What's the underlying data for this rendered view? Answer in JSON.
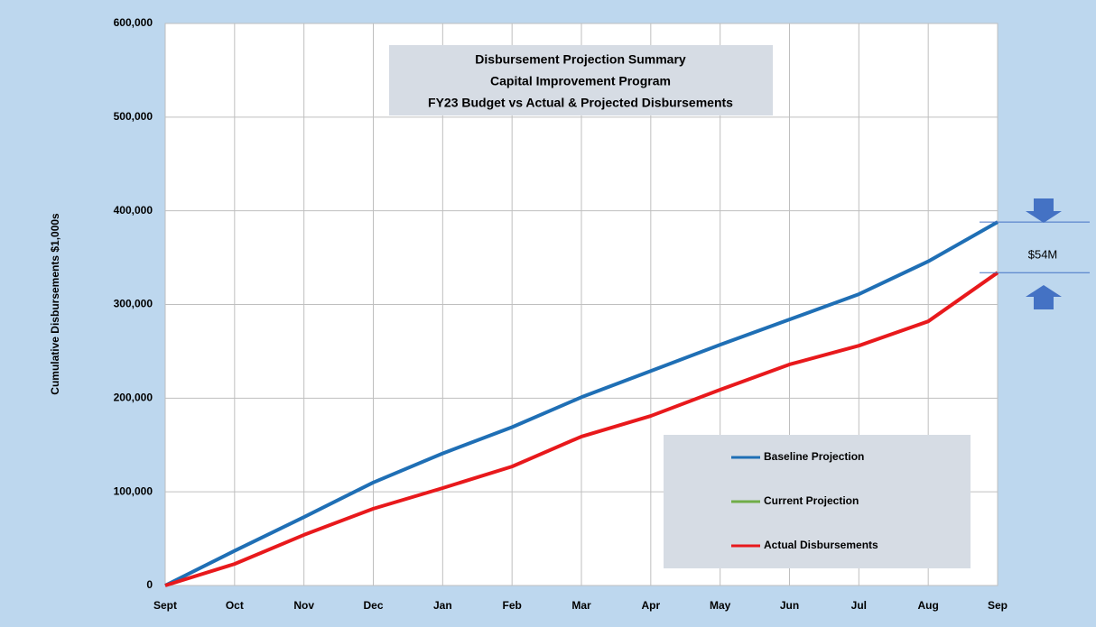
{
  "chart_data": {
    "type": "line",
    "title": [
      "Disbursement Projection Summary",
      "Capital Improvement Program",
      "FY23 Budget vs Actual & Projected Disbursements"
    ],
    "ylabel": "Cumulative Disbursements $1,000s",
    "categories": [
      "Sept",
      "Oct",
      "Nov",
      "Dec",
      "Jan",
      "Feb",
      "Mar",
      "Apr",
      "May",
      "Jun",
      "Jul",
      "Aug",
      "Sep"
    ],
    "series": [
      {
        "name": "Baseline Projection",
        "color": "#1f6fb5",
        "values": [
          0,
          37000,
          73000,
          110000,
          141000,
          169000,
          201000,
          229000,
          257000,
          284000,
          311000,
          346000,
          388000
        ]
      },
      {
        "name": "Current Projection",
        "color": "#70ad47",
        "values": [
          null,
          null,
          null,
          null,
          null,
          null,
          null,
          null,
          null,
          null,
          null,
          null,
          null
        ]
      },
      {
        "name": "Actual Disbursements",
        "color": "#e8191c",
        "values": [
          0,
          23000,
          54000,
          82000,
          104000,
          127000,
          159000,
          181000,
          209000,
          236000,
          256000,
          282000,
          334000
        ]
      }
    ],
    "ylim": [
      0,
      600000
    ],
    "yticks": [
      0,
      {
        "value": 100000,
        "label": "100,000"
      },
      {
        "value": 200000,
        "label": "200,000"
      },
      {
        "value": 300000,
        "label": "300,000"
      },
      {
        "value": 400000,
        "label": "400,000"
      },
      {
        "value": 500000,
        "label": "500,000"
      },
      {
        "value": 600000,
        "label": "600,000"
      }
    ],
    "grid": true,
    "annotation": "$54M"
  }
}
